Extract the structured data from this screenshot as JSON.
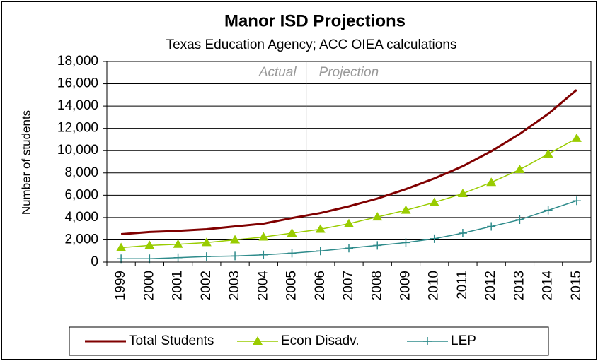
{
  "chart_data": {
    "type": "line",
    "title": "Manor ISD Projections",
    "subtitle": "Texas Education Agency; ACC OIEA calculations",
    "y_label": "Number of students",
    "annotations": [
      "Actual",
      "Projection"
    ],
    "categories": [
      "1999",
      "2000",
      "2001",
      "2002",
      "2003",
      "2004",
      "2005",
      "2006",
      "2007",
      "2008",
      "2009",
      "2010",
      "2011",
      "2012",
      "2013",
      "2014",
      "2015"
    ],
    "series": [
      {
        "name": "Total Students",
        "color": "#800000",
        "marker": "none",
        "values": [
          2500,
          2700,
          2800,
          2950,
          3200,
          3450,
          3950,
          4400,
          5000,
          5700,
          6550,
          7500,
          8600,
          9950,
          11500,
          13300,
          15450
        ]
      },
      {
        "name": "Econ Disadv.",
        "color": "#99cc00",
        "marker": "triangle",
        "values": [
          1300,
          1500,
          1600,
          1750,
          2000,
          2250,
          2600,
          2950,
          3450,
          4050,
          4650,
          5350,
          6150,
          7150,
          8300,
          9700,
          11100
        ]
      },
      {
        "name": "LEP",
        "color": "#2e8b8b",
        "marker": "plus",
        "values": [
          300,
          300,
          400,
          500,
          550,
          650,
          800,
          1000,
          1250,
          1500,
          1750,
          2100,
          2600,
          3200,
          3800,
          4650,
          5500
        ]
      }
    ],
    "ylim": [
      0,
      18000
    ],
    "yticks": [
      0,
      {
        "value": 2000,
        "label": "2,000"
      },
      {
        "value": 4000,
        "label": "4,000"
      },
      {
        "value": 6000,
        "label": "6,000"
      },
      {
        "value": 8000,
        "label": "8,000"
      },
      {
        "value": 10000,
        "label": "10,000"
      },
      {
        "value": 12000,
        "label": "12,000"
      },
      {
        "value": 14000,
        "label": "14,000"
      },
      {
        "value": 16000,
        "label": "16,000"
      },
      {
        "value": 18000,
        "label": "18,000"
      }
    ],
    "grid": true,
    "legend": "bottom"
  }
}
